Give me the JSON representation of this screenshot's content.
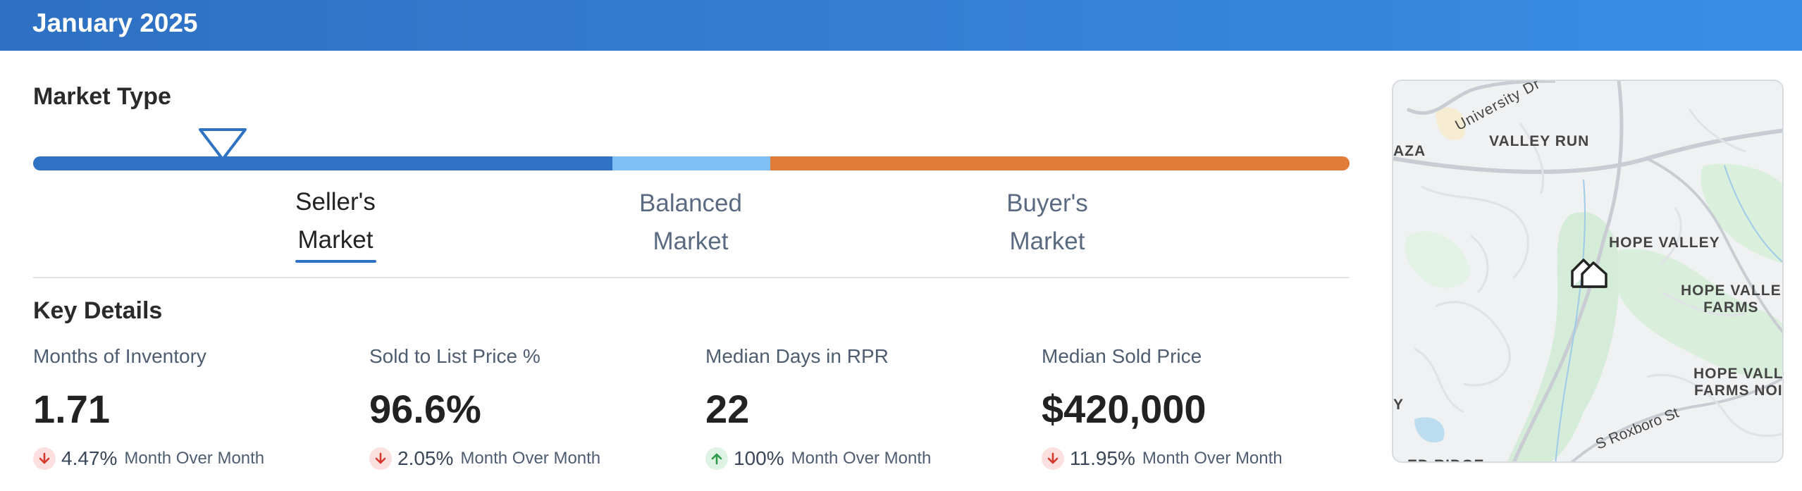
{
  "header": {
    "title": "January 2025"
  },
  "market_type": {
    "title": "Market Type",
    "position": 0.144,
    "segments": [
      {
        "name": "seller",
        "line1": "Seller's",
        "line2": "Market",
        "color": "#2f72c4",
        "active": true
      },
      {
        "name": "balanced",
        "line1": "Balanced",
        "line2": "Market",
        "color": "#7ec0f4",
        "active": false
      },
      {
        "name": "buyer",
        "line1": "Buyer's",
        "line2": "Market",
        "color": "#e07c38",
        "active": false
      }
    ]
  },
  "key_details": {
    "title": "Key Details",
    "stats": [
      {
        "label": "Months of Inventory",
        "value": "1.71",
        "change_dir": "down",
        "change_pct": "4.47%",
        "change_text": "Month Over Month"
      },
      {
        "label": "Sold to List Price %",
        "value": "96.6%",
        "change_dir": "down",
        "change_pct": "2.05%",
        "change_text": "Month Over Month"
      },
      {
        "label": "Median Days in RPR",
        "value": "22",
        "change_dir": "up",
        "change_pct": "100%",
        "change_text": "Month Over Month"
      },
      {
        "label": "Median Sold Price",
        "value": "$420,000",
        "change_dir": "down",
        "change_pct": "11.95%",
        "change_text": "Month Over Month"
      }
    ]
  },
  "map": {
    "labels": {
      "university": "University Dr",
      "aza": "AZA",
      "valley_run": "VALLEY RUN",
      "hope_valley": "HOPE VALLEY",
      "hope_valley_farms_1": "HOPE VALLE",
      "hope_valley_farms_2": "FARMS",
      "hope_valley_farms_nor_1": "HOPE VALL",
      "hope_valley_farms_nor_2": "FARMS NOI",
      "roxboro": "S Roxboro St",
      "y": "Y",
      "bottom": "ED RIDGE"
    },
    "icon": "home-location-icon"
  }
}
